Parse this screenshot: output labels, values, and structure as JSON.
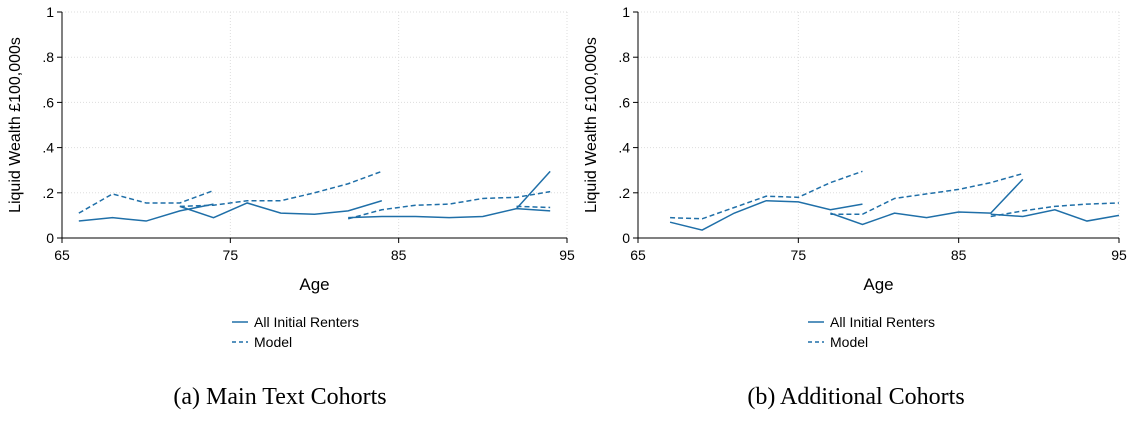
{
  "chart_data": [
    {
      "type": "line",
      "caption": "(a) Main Text Cohorts",
      "xlabel": "Age",
      "ylabel": "Liquid Wealth £100,000s",
      "xlim": [
        65,
        95
      ],
      "xticks": [
        65,
        75,
        85,
        95
      ],
      "ylim": [
        0,
        1
      ],
      "yticks": [
        0,
        {
          "value": 0.2,
          "label": ".2"
        },
        {
          "value": 0.4,
          "label": ".4"
        },
        {
          "value": 0.6,
          "label": ".6"
        },
        {
          "value": 0.8,
          "label": ".8"
        },
        1
      ],
      "grid": true,
      "series": [
        {
          "name": "All Initial Renters",
          "color": "#1f6fa8",
          "line_style": "solid",
          "x": [
            66,
            68,
            70,
            72,
            74
          ],
          "values": [
            0.075,
            0.09,
            0.075,
            0.12,
            0.15
          ]
        },
        {
          "name": "Model",
          "color": "#1f6fa8",
          "line_style": "dashed",
          "x": [
            66,
            68,
            70,
            72,
            74
          ],
          "values": [
            0.11,
            0.195,
            0.155,
            0.155,
            0.21
          ]
        },
        {
          "color": "#1f6fa8",
          "line_style": "solid",
          "x": [
            72,
            74,
            76,
            78,
            80,
            82,
            84
          ],
          "values": [
            0.14,
            0.09,
            0.155,
            0.11,
            0.105,
            0.12,
            0.165
          ]
        },
        {
          "color": "#1f6fa8",
          "line_style": "dashed",
          "x": [
            72,
            74,
            76,
            78,
            80,
            82,
            84
          ],
          "values": [
            0.14,
            0.145,
            0.165,
            0.165,
            0.2,
            0.24,
            0.295
          ]
        },
        {
          "color": "#1f6fa8",
          "line_style": "solid",
          "x": [
            82,
            84,
            86,
            88,
            90,
            92,
            94
          ],
          "values": [
            0.09,
            0.095,
            0.095,
            0.09,
            0.095,
            0.13,
            0.12
          ]
        },
        {
          "color": "#1f6fa8",
          "line_style": "dashed",
          "x": [
            82,
            84,
            86,
            88,
            90,
            92,
            94
          ],
          "values": [
            0.085,
            0.125,
            0.145,
            0.15,
            0.175,
            0.18,
            0.205
          ]
        },
        {
          "color": "#1f6fa8",
          "line_style": "solid",
          "x": [
            92,
            94
          ],
          "values": [
            0.13,
            0.295
          ]
        },
        {
          "color": "#1f6fa8",
          "line_style": "dashed",
          "x": [
            92,
            94
          ],
          "values": [
            0.14,
            0.135
          ]
        }
      ]
    },
    {
      "type": "line",
      "caption": "(b) Additional Cohorts",
      "xlabel": "Age",
      "ylabel": "Liquid Wealth £100,000s",
      "xlim": [
        65,
        95
      ],
      "xticks": [
        65,
        75,
        85,
        95
      ],
      "ylim": [
        0,
        1
      ],
      "yticks": [
        0,
        {
          "value": 0.2,
          "label": ".2"
        },
        {
          "value": 0.4,
          "label": ".4"
        },
        {
          "value": 0.6,
          "label": ".6"
        },
        {
          "value": 0.8,
          "label": ".8"
        },
        1
      ],
      "grid": true,
      "series": [
        {
          "name": "All Initial Renters",
          "color": "#1f6fa8",
          "line_style": "solid",
          "x": [
            67,
            69,
            71,
            73,
            75,
            77,
            79
          ],
          "values": [
            0.07,
            0.035,
            0.11,
            0.165,
            0.16,
            0.125,
            0.15
          ]
        },
        {
          "name": "Model",
          "color": "#1f6fa8",
          "line_style": "dashed",
          "x": [
            67,
            69,
            71,
            73,
            75,
            77,
            79
          ],
          "values": [
            0.09,
            0.085,
            0.135,
            0.185,
            0.18,
            0.245,
            0.295
          ]
        },
        {
          "color": "#1f6fa8",
          "line_style": "solid",
          "x": [
            77,
            79,
            81,
            83,
            85,
            87,
            89
          ],
          "values": [
            0.11,
            0.06,
            0.11,
            0.09,
            0.115,
            0.11,
            0.26
          ]
        },
        {
          "color": "#1f6fa8",
          "line_style": "dashed",
          "x": [
            77,
            79,
            81,
            83,
            85,
            87,
            89
          ],
          "values": [
            0.105,
            0.105,
            0.175,
            0.195,
            0.215,
            0.245,
            0.285
          ]
        },
        {
          "color": "#1f6fa8",
          "line_style": "solid",
          "x": [
            87,
            89,
            91,
            93,
            95
          ],
          "values": [
            0.105,
            0.095,
            0.125,
            0.075,
            0.1
          ]
        },
        {
          "color": "#1f6fa8",
          "line_style": "dashed",
          "x": [
            87,
            89,
            91,
            93,
            95
          ],
          "values": [
            0.095,
            0.12,
            0.14,
            0.15,
            0.155
          ]
        }
      ]
    }
  ]
}
